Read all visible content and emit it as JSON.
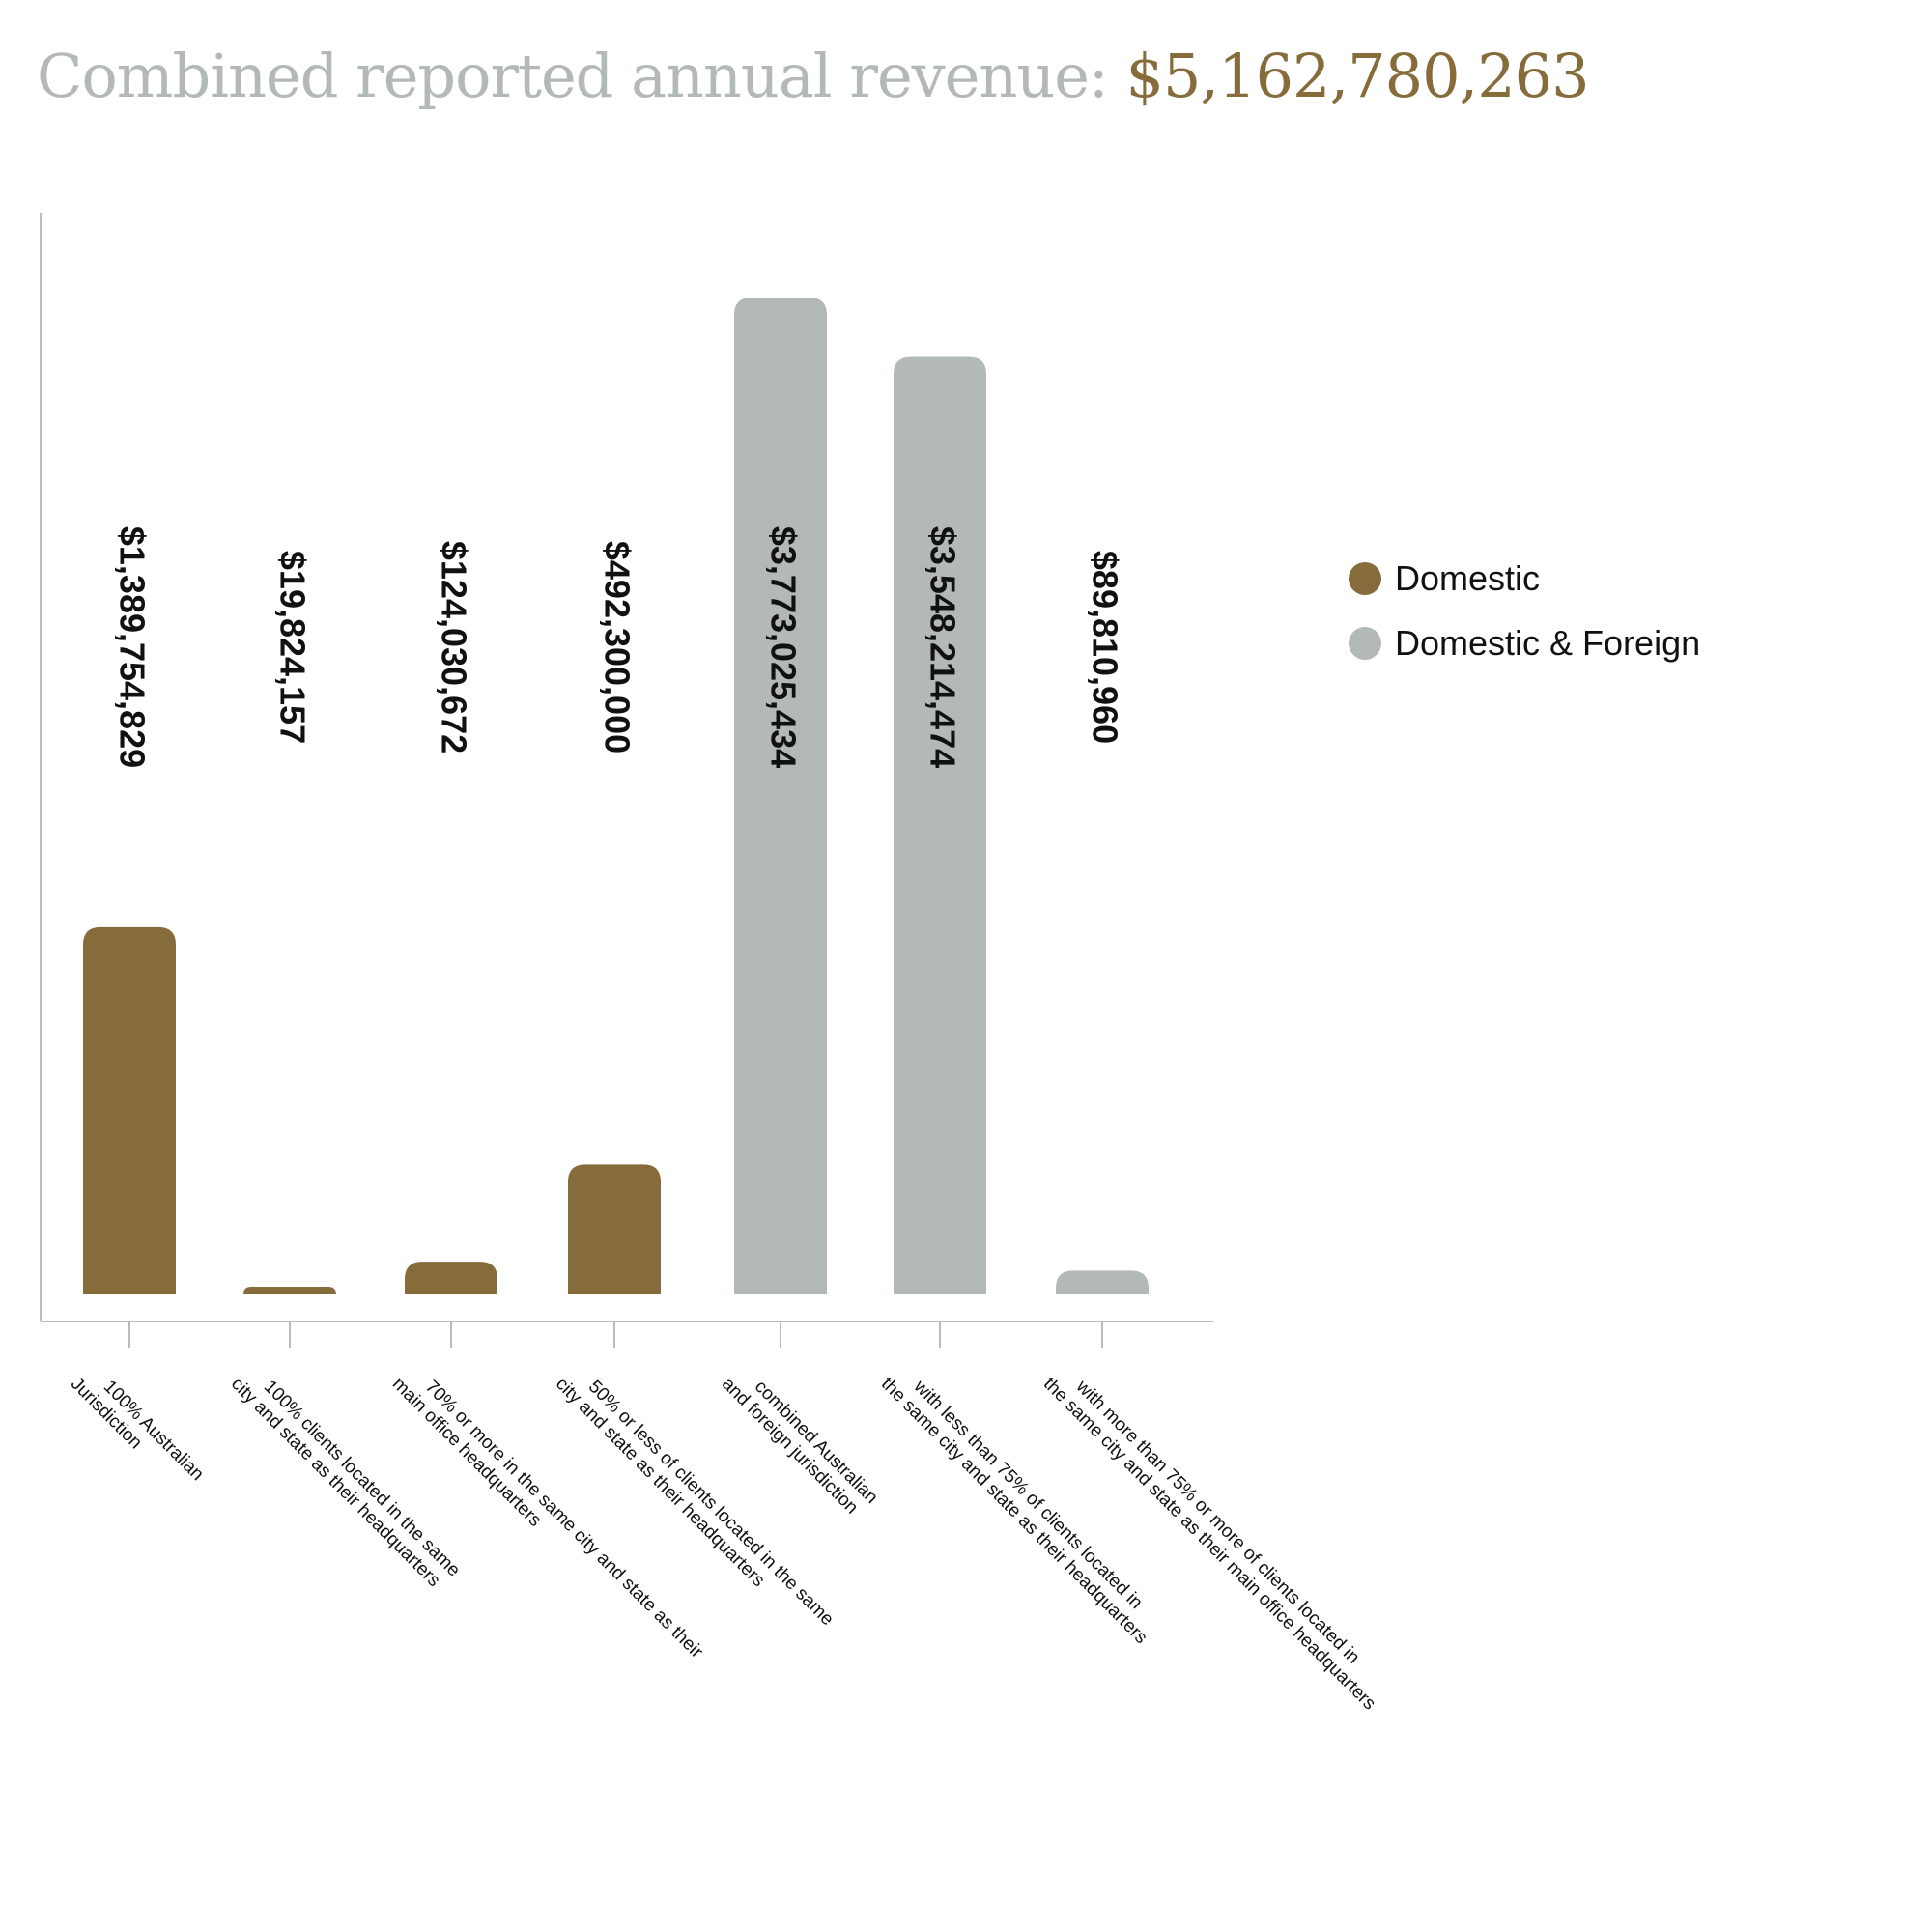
{
  "title": {
    "text": "Combined reported annual revenue: ",
    "amount": "$5,162,780,263"
  },
  "chart_data": {
    "type": "bar",
    "categories": [
      [
        "100% Australian",
        "Jurisdiction"
      ],
      [
        "100% clients located in the same",
        "city and state as their headquarters"
      ],
      [
        "70% or more in the same city and state as their",
        "main office headquarters"
      ],
      [
        "50% or less of clients located in the same",
        "city and state as their headquarters"
      ],
      [
        "combined Australian",
        "and foreign jurisdiction"
      ],
      [
        "with less than 75% of clients located in",
        "the same city and state as their headquarters"
      ],
      [
        "with more than 75% or more of clients located in",
        "the same city and state as their main office headquarters"
      ]
    ],
    "values": [
      1389754829,
      19824157,
      124030672,
      492300000,
      3773025434,
      3548214474,
      89810960
    ],
    "labels": [
      "$1,389,754,829",
      "$19,824,157",
      "$124,030,672",
      "$492,300,000",
      "$3,773,025,434",
      "$3,548,214,474",
      "$89,810,960"
    ],
    "groups": [
      "Domestic",
      "Domestic",
      "Domestic",
      "Domestic",
      "Domestic & Foreign",
      "Domestic & Foreign",
      "Domestic & Foreign"
    ],
    "legend": [
      {
        "name": "Domestic",
        "color": "#866b3b"
      },
      {
        "name": "Domestic & Foreign",
        "color": "#b3b9b7"
      }
    ],
    "legend_position": "right",
    "grid": false,
    "xlabel": "",
    "ylabel": ""
  }
}
